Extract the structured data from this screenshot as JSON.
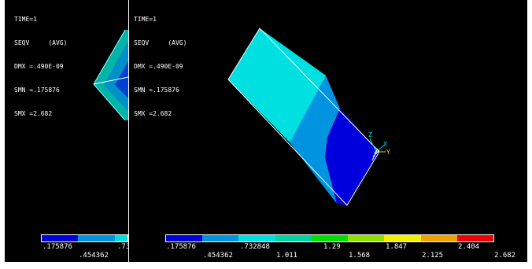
{
  "left_view": {
    "info": {
      "time": "TIME=1",
      "seqv": "SEQV     (AVG)",
      "dmx": "DMX =.490E-09",
      "smn": "SMN =.175876",
      "smx": "SMX =2.682"
    },
    "legend": {
      "labels_top": [
        ".175876",
        ".73"
      ],
      "labels_bottom": [
        ".454362"
      ]
    }
  },
  "right_view": {
    "info": {
      "time": "TIME=1",
      "seqv": "SEQV     (AVG)",
      "dmx": "DMX =.490E-09",
      "smn": "SMN =.175876",
      "smx": "SMX =2.682"
    },
    "triad": {
      "z": "Z",
      "x": "X",
      "y": "Y"
    },
    "legend": {
      "labels_top": [
        ".175876",
        ".732848",
        "1.29",
        "1.847",
        "2.404"
      ],
      "labels_bottom": [
        ".454362",
        "1.011",
        "1.568",
        "2.125",
        "2.682"
      ]
    }
  },
  "colors": {
    "background": "#000000",
    "contour": [
      "#0000dd",
      "#0094e0",
      "#00e0e0",
      "#00d2a0",
      "#00e000",
      "#90e000",
      "#f0f000",
      "#f0a000",
      "#f00000"
    ],
    "legend_border": "#ffffff"
  }
}
